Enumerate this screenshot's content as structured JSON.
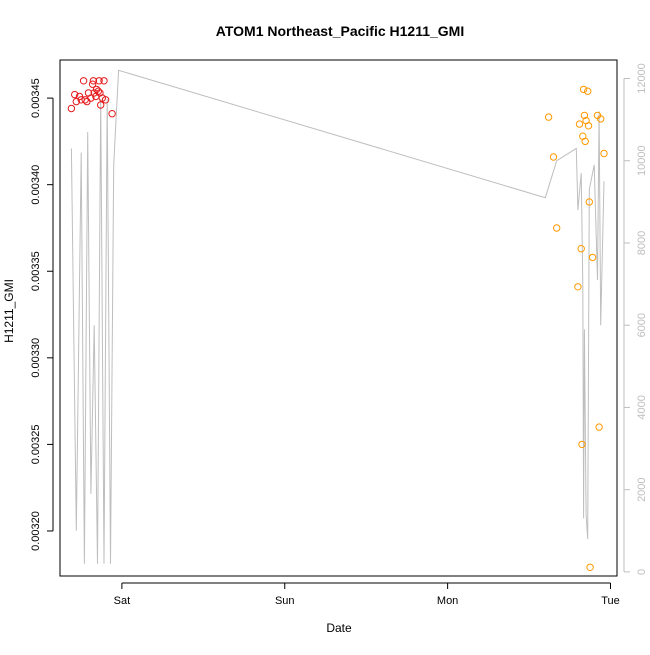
{
  "chart_data": {
    "type": "scatter",
    "title": "ATOM1 Northeast_Pacific H1211_GMI",
    "xlabel": "Date",
    "ylabel": "H1211_GMI",
    "x_ticks": [
      "Sat",
      "Sun",
      "Mon",
      "Tue"
    ],
    "x_tick_values": [
      1.0,
      2.0,
      3.0,
      4.0
    ],
    "xlim": [
      0.62,
      4.04
    ],
    "ylim": [
      0.003174,
      0.003472
    ],
    "y_ticks": [
      "0.00320",
      "0.00325",
      "0.00330",
      "0.00335",
      "0.00340",
      "0.00345"
    ],
    "y_tick_values": [
      0.0032,
      0.00325,
      0.0033,
      0.00335,
      0.0034,
      0.00345
    ],
    "y2lim": [
      -100,
      12450
    ],
    "y2_ticks": [
      "0",
      "2000",
      "4000",
      "6000",
      "8000",
      "10000",
      "12000"
    ],
    "y2_tick_values": [
      0,
      2000,
      4000,
      6000,
      8000,
      10000,
      12000
    ],
    "colors": {
      "series_early": "#e41a1c",
      "series_late": "#ff9900",
      "altitude_line": "#bebebe",
      "axis": "#000000",
      "right_axis": "#bebebe"
    },
    "series": [
      {
        "color": "#e41a1c",
        "points": [
          [
            0.69,
            0.003444
          ],
          [
            0.71,
            0.003452
          ],
          [
            0.72,
            0.003448
          ],
          [
            0.74,
            0.003451
          ],
          [
            0.75,
            0.003449
          ],
          [
            0.765,
            0.00346
          ],
          [
            0.775,
            0.003449
          ],
          [
            0.785,
            0.003448
          ],
          [
            0.795,
            0.003453
          ],
          [
            0.81,
            0.00345
          ],
          [
            0.82,
            0.003458
          ],
          [
            0.825,
            0.00346
          ],
          [
            0.83,
            0.003453
          ],
          [
            0.84,
            0.003451
          ],
          [
            0.845,
            0.003455
          ],
          [
            0.855,
            0.003454
          ],
          [
            0.86,
            0.00346
          ],
          [
            0.865,
            0.003453
          ],
          [
            0.87,
            0.003446
          ],
          [
            0.88,
            0.00345
          ],
          [
            0.89,
            0.00346
          ],
          [
            0.9,
            0.003449
          ],
          [
            0.94,
            0.003441
          ]
        ]
      },
      {
        "color": "#ff9900",
        "points": [
          [
            3.62,
            0.003439
          ],
          [
            3.65,
            0.003416
          ],
          [
            3.67,
            0.003375
          ],
          [
            3.8,
            0.003341
          ],
          [
            3.81,
            0.003435
          ],
          [
            3.82,
            0.003363
          ],
          [
            3.825,
            0.00325
          ],
          [
            3.83,
            0.003428
          ],
          [
            3.835,
            0.003455
          ],
          [
            3.84,
            0.00344
          ],
          [
            3.845,
            0.003425
          ],
          [
            3.85,
            0.003437
          ],
          [
            3.86,
            0.003454
          ],
          [
            3.865,
            0.003434
          ],
          [
            3.87,
            0.00339
          ],
          [
            3.875,
            0.003179
          ],
          [
            3.89,
            0.003358
          ],
          [
            3.92,
            0.00344
          ],
          [
            3.93,
            0.00326
          ],
          [
            3.94,
            0.003438
          ],
          [
            3.96,
            0.003418
          ]
        ]
      }
    ],
    "altitude_line": [
      [
        0.69,
        10300
      ],
      [
        0.72,
        1000
      ],
      [
        0.75,
        10200
      ],
      [
        0.77,
        200
      ],
      [
        0.79,
        10700
      ],
      [
        0.81,
        1900
      ],
      [
        0.83,
        6000
      ],
      [
        0.85,
        200
      ],
      [
        0.87,
        11500
      ],
      [
        0.89,
        200
      ],
      [
        0.91,
        11500
      ],
      [
        0.93,
        200
      ],
      [
        0.95,
        9900
      ],
      [
        0.98,
        12200
      ],
      [
        3.6,
        9100
      ],
      [
        3.67,
        10000
      ],
      [
        3.79,
        10300
      ],
      [
        3.8,
        8800
      ],
      [
        3.82,
        9700
      ],
      [
        3.83,
        7000
      ],
      [
        3.835,
        1300
      ],
      [
        3.84,
        5900
      ],
      [
        3.85,
        1400
      ],
      [
        3.86,
        800
      ],
      [
        3.87,
        9300
      ],
      [
        3.9,
        9900
      ],
      [
        3.92,
        7100
      ],
      [
        3.93,
        11200
      ],
      [
        3.94,
        6000
      ],
      [
        3.96,
        9500
      ]
    ]
  }
}
